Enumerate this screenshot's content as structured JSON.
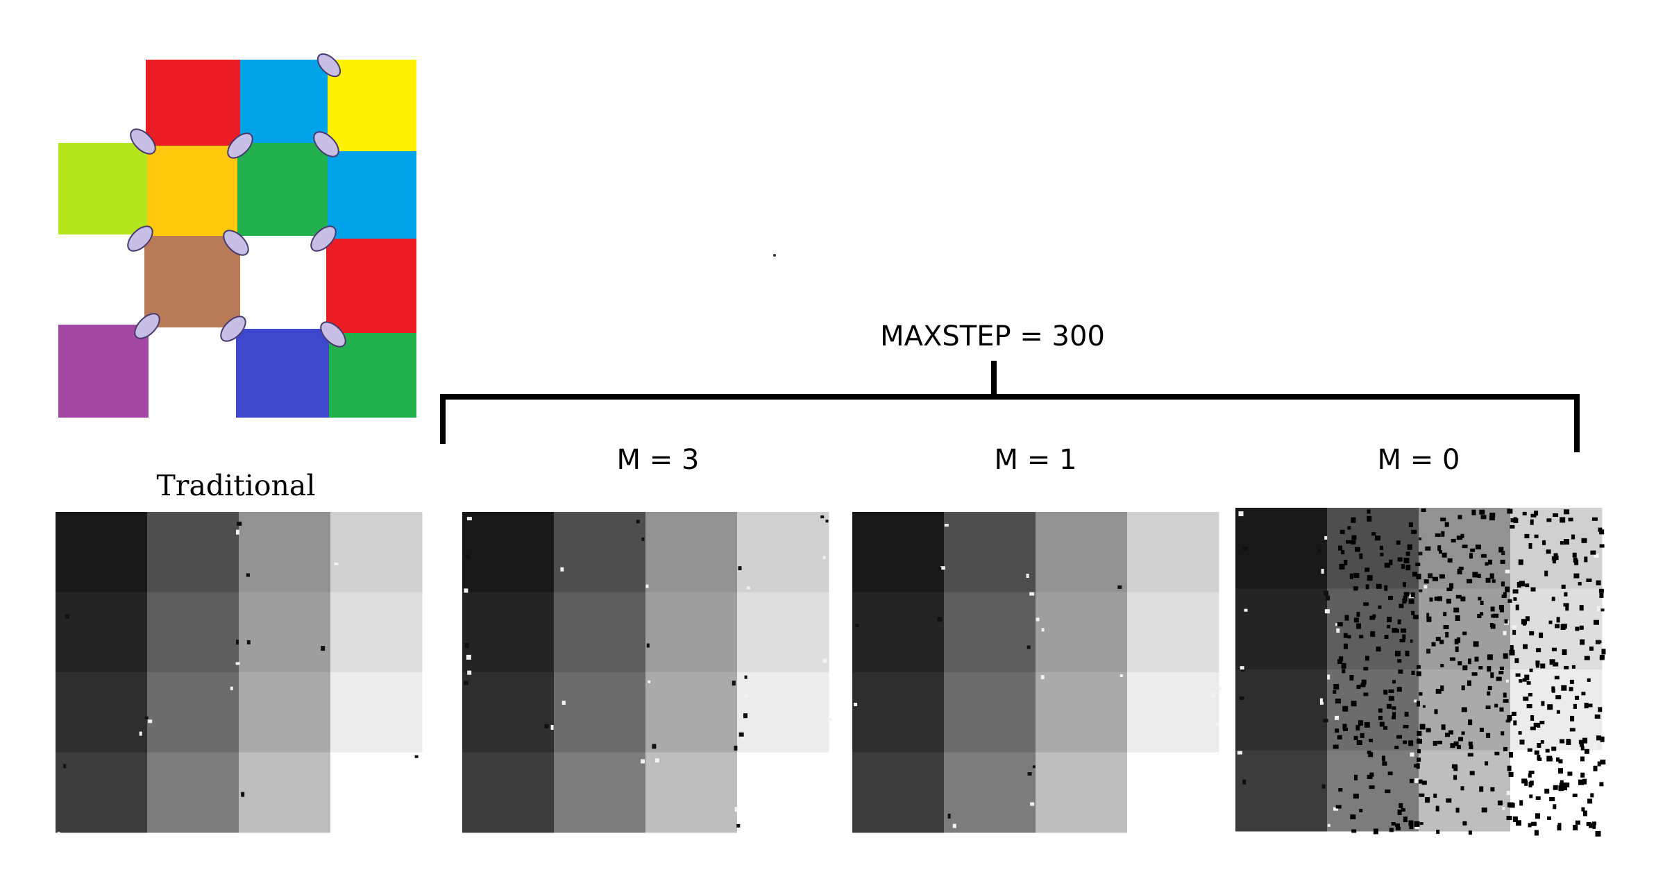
{
  "labels": {
    "maxstep": "MAXSTEP = 300",
    "traditional": "Traditional",
    "m3": "M = 3",
    "m1": "M = 1",
    "m0": "M = 0"
  },
  "colors": {
    "red": "#ec1c24",
    "cyan": "#00a2e8",
    "yellow": "#fff200",
    "lime": "#b5e61d",
    "amber": "#ffc90e",
    "green": "#22b14c",
    "brown": "#b97a57",
    "purple": "#a349a4",
    "blue": "#3f48cc",
    "lavender": "#c8bfe7"
  },
  "grayscale_levels": [
    [
      24,
      78,
      146,
      208
    ],
    [
      36,
      94,
      158,
      222
    ],
    [
      46,
      108,
      170,
      236
    ],
    [
      60,
      124,
      190,
      255
    ]
  ],
  "panels": [
    "traditional",
    "m3",
    "m1",
    "m0"
  ]
}
